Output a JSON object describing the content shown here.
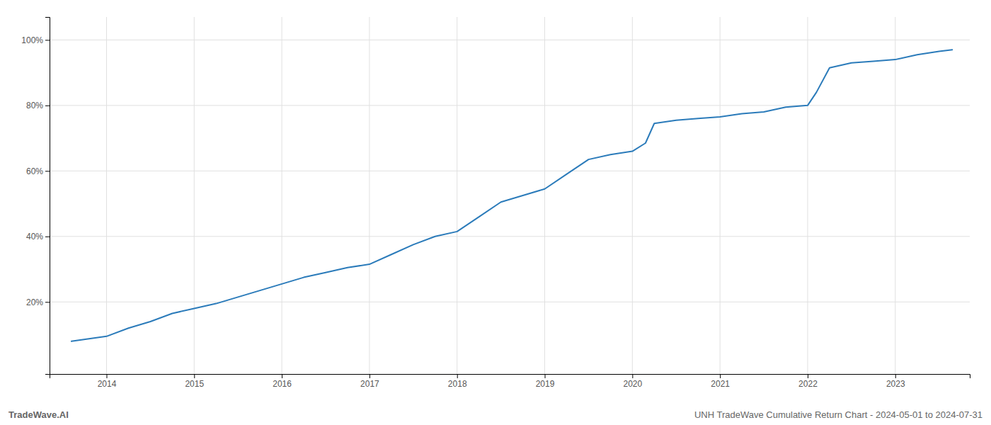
{
  "chart_data": {
    "type": "line",
    "title": "UNH TradeWave Cumulative Return Chart - 2024-05-01 to 2024-07-31",
    "annotations": [
      "TradeWave.AI"
    ],
    "color": "#2b7bba",
    "x": [
      2013.6,
      2014.0,
      2014.25,
      2014.5,
      2014.75,
      2015.0,
      2015.25,
      2015.5,
      2015.75,
      2016.0,
      2016.25,
      2016.5,
      2016.75,
      2017.0,
      2017.25,
      2017.5,
      2017.75,
      2018.0,
      2018.25,
      2018.5,
      2018.75,
      2019.0,
      2019.25,
      2019.5,
      2019.75,
      2020.0,
      2020.15,
      2020.25,
      2020.5,
      2020.75,
      2021.0,
      2021.25,
      2021.5,
      2021.75,
      2022.0,
      2022.1,
      2022.25,
      2022.5,
      2022.75,
      2023.0,
      2023.25,
      2023.5,
      2023.65
    ],
    "values": [
      8.0,
      9.5,
      12.0,
      14.0,
      16.5,
      18.0,
      19.5,
      21.5,
      23.5,
      25.5,
      27.5,
      29.0,
      30.5,
      31.5,
      34.5,
      37.5,
      40.0,
      41.5,
      46.0,
      50.5,
      52.5,
      54.5,
      59.0,
      63.5,
      65.0,
      66.0,
      68.5,
      74.5,
      75.5,
      76.0,
      76.5,
      77.5,
      78.0,
      79.5,
      80.0,
      84.0,
      91.5,
      93.0,
      93.5,
      94.0,
      95.5,
      96.5,
      97.0
    ],
    "xlim": [
      2013.35,
      2023.85
    ],
    "ylim": [
      -2,
      107
    ],
    "xticks": [
      2014,
      2015,
      2016,
      2017,
      2018,
      2019,
      2020,
      2021,
      2022,
      2023
    ],
    "yticks": [
      {
        "value": 20,
        "label": "20%"
      },
      {
        "value": 40,
        "label": "40%"
      },
      {
        "value": 60,
        "label": "60%"
      },
      {
        "value": 80,
        "label": "80%"
      },
      {
        "value": 100,
        "label": "100%"
      }
    ],
    "grid": true
  }
}
